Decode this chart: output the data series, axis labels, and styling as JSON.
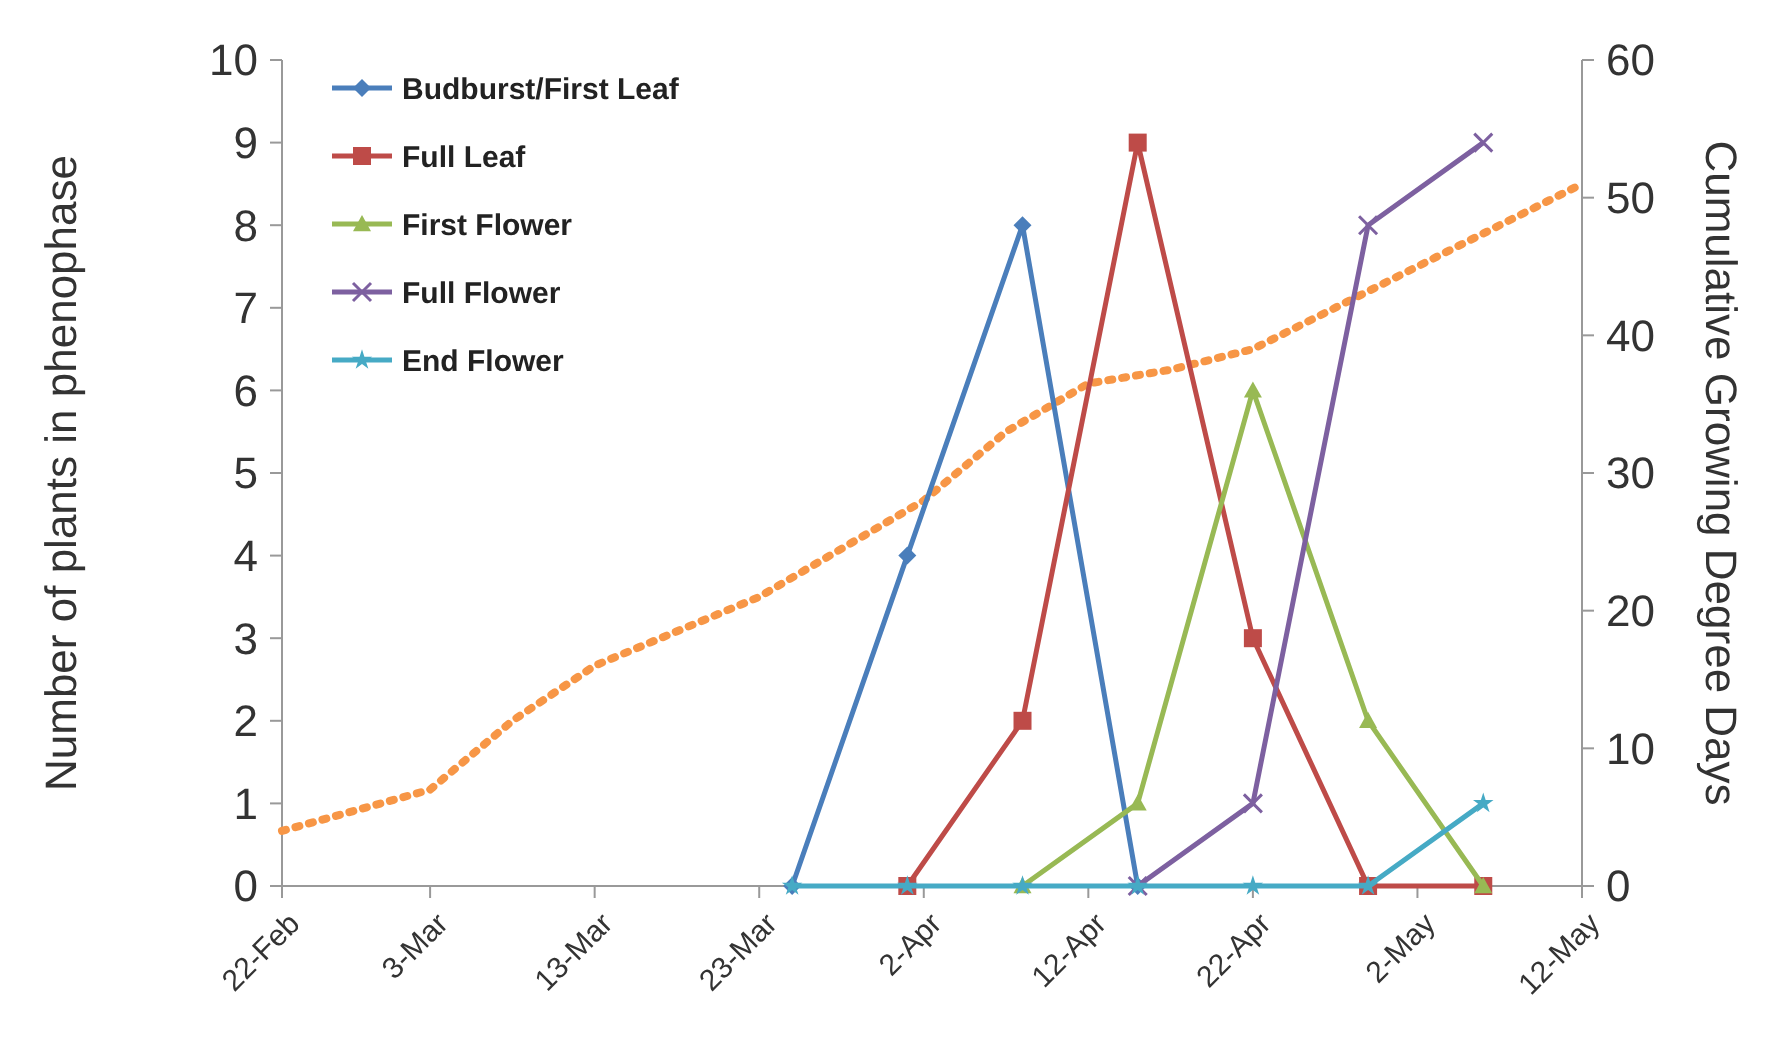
{
  "chart_data": {
    "type": "line",
    "ylabel": "Number of plants in phenophase",
    "y2label": "Cumulative Growing Degree Days",
    "xlim": [
      "--02-22",
      "--05-12"
    ],
    "xticks": [
      {
        "value": "--02-22",
        "label": "22-Feb"
      },
      {
        "value": "--03-03",
        "label": "3-Mar"
      },
      {
        "value": "--03-13",
        "label": "13-Mar"
      },
      {
        "value": "--03-23",
        "label": "23-Mar"
      },
      {
        "value": "--04-02",
        "label": "2-Apr"
      },
      {
        "value": "--04-12",
        "label": "12-Apr"
      },
      {
        "value": "--04-22",
        "label": "22-Apr"
      },
      {
        "value": "--05-02",
        "label": "2-May"
      },
      {
        "value": "--05-12",
        "label": "12-May"
      }
    ],
    "ylim": [
      0,
      10
    ],
    "yticks": [
      0,
      1,
      2,
      3,
      4,
      5,
      6,
      7,
      8,
      9,
      10
    ],
    "y2lim": [
      0,
      60
    ],
    "y2ticks": [
      0,
      10,
      20,
      30,
      40,
      50,
      60
    ],
    "grid": false,
    "legend": "top left",
    "line_style": "solid",
    "series": [
      {
        "name": "Budburst/First Leaf",
        "color": "#4a7ebb",
        "marker": "diamond",
        "x": [
          "--03-25",
          "--04-01",
          "--04-08",
          "--04-15"
        ],
        "values": [
          0,
          4,
          8,
          0
        ]
      },
      {
        "name": "Full Leaf",
        "color": "#be4b48",
        "marker": "square",
        "x": [
          "--04-01",
          "--04-08",
          "--04-15",
          "--04-22",
          "--04-29",
          "--05-06"
        ],
        "values": [
          0,
          2,
          9,
          3,
          0,
          0
        ]
      },
      {
        "name": "First Flower",
        "color": "#98b954",
        "marker": "triangle",
        "x": [
          "--04-08",
          "--04-15",
          "--04-22",
          "--04-29",
          "--05-06"
        ],
        "values": [
          0,
          1,
          6,
          2,
          0
        ]
      },
      {
        "name": "Full Flower",
        "color": "#7d60a0",
        "marker": "cross",
        "x": [
          "--04-15",
          "--04-22",
          "--04-29",
          "--05-06"
        ],
        "values": [
          0,
          1,
          8,
          9
        ]
      },
      {
        "name": "End Flower",
        "color": "#46aac5",
        "marker": "star",
        "x": [
          "--03-25",
          "--04-01",
          "--04-08",
          "--04-15",
          "--04-22",
          "--04-29",
          "--05-06"
        ],
        "values": [
          0,
          0,
          0,
          0,
          0,
          0,
          1
        ]
      },
      {
        "color": "#f79646",
        "axis": "y2",
        "marker": "none",
        "line_style": "dotted",
        "x": [
          "--02-22",
          "--03-03",
          "--03-08",
          "--03-13",
          "--03-23",
          "--04-02",
          "--04-07",
          "--04-12",
          "--04-17",
          "--04-22",
          "--05-02",
          "--05-12"
        ],
        "values": [
          4,
          7,
          12,
          16,
          21,
          28,
          33,
          36.5,
          37.5,
          39,
          45,
          51
        ]
      }
    ]
  }
}
